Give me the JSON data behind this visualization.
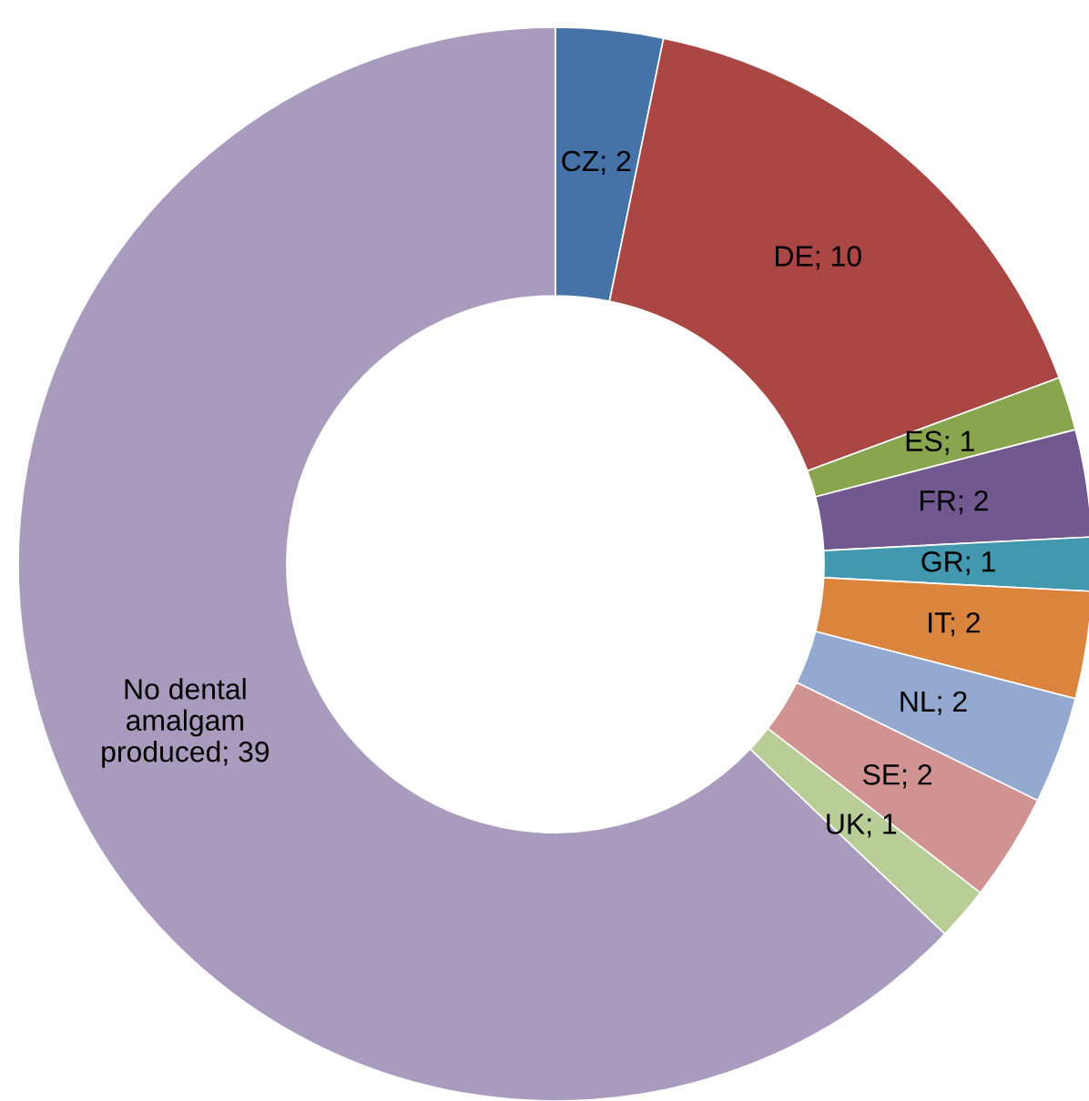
{
  "chart_data": {
    "type": "donut",
    "categories": [
      "CZ",
      "DE",
      "ES",
      "FR",
      "GR",
      "IT",
      "NL",
      "SE",
      "UK",
      "No dental\namalgam\nproduced"
    ],
    "values": [
      2,
      10,
      1,
      2,
      1,
      2,
      2,
      2,
      1,
      39
    ],
    "colors": [
      "#4572a7",
      "#aa4643",
      "#89a54e",
      "#71588f",
      "#4198af",
      "#db843d",
      "#93a9cf",
      "#d19392",
      "#b9cd96",
      "#a99bbd"
    ],
    "value_labels": [
      "; 2",
      "; 10",
      "; 1",
      "; 2",
      "; 1",
      "; 2",
      "; 2",
      "; 2",
      "; 1",
      "; 39"
    ]
  }
}
